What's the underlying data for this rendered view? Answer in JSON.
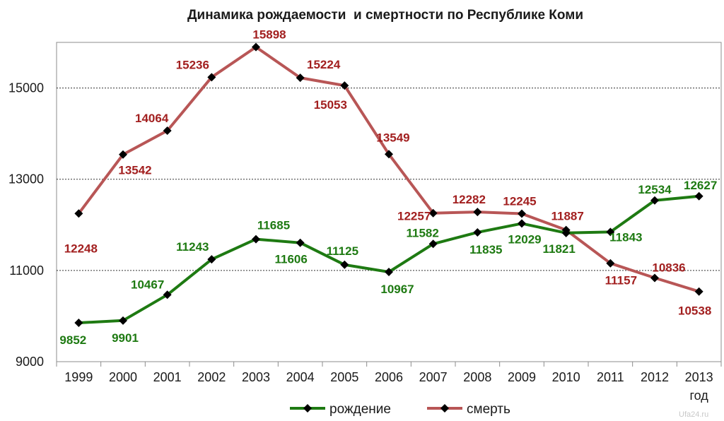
{
  "chart_data": {
    "type": "line",
    "title": "Динамика рождаемости  и смертности по Республике Коми",
    "xlabel": "год",
    "ylabel": "",
    "categories": [
      "1999",
      "2000",
      "2001",
      "2002",
      "2003",
      "2004",
      "2005",
      "2006",
      "2007",
      "2008",
      "2009",
      "2010",
      "2011",
      "2012",
      "2013"
    ],
    "ylim": [
      9000,
      16000
    ],
    "yticks": [
      "9000",
      "11000",
      "13000",
      "15000"
    ],
    "grid": true,
    "legend_position": "bottom",
    "series": [
      {
        "name": "рождение",
        "color": "#1e7a12",
        "values": [
          9852,
          9901,
          10467,
          11243,
          11685,
          11606,
          11125,
          10967,
          11582,
          11835,
          12029,
          11821,
          11843,
          12534,
          12627
        ]
      },
      {
        "name": "смерть",
        "color": "#b85656",
        "label_color": "#a21f1f",
        "values": [
          12248,
          13542,
          14064,
          15236,
          15898,
          15224,
          15053,
          13549,
          12257,
          12282,
          12245,
          11887,
          11157,
          10836,
          10538
        ]
      }
    ]
  },
  "watermark": "Ufa24.ru"
}
